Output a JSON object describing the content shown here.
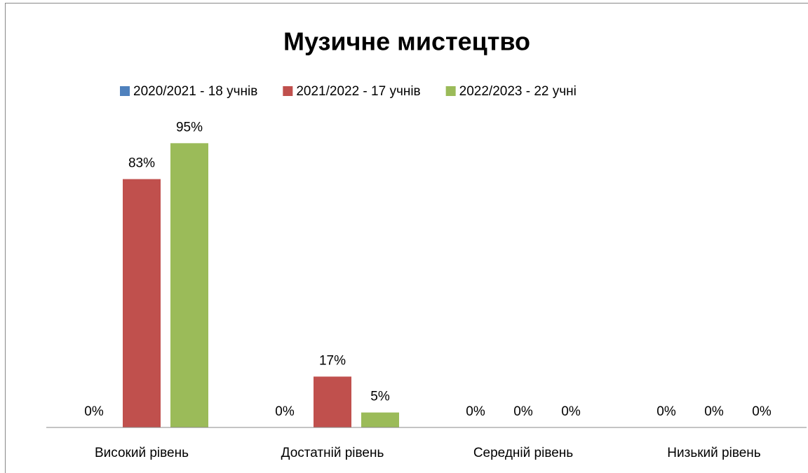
{
  "chart_data": {
    "type": "bar",
    "title": "Музичне мистецтво",
    "categories": [
      "Високий рівень",
      "Достатній рівень",
      "Середній рівень",
      "Низький рівень"
    ],
    "series": [
      {
        "name": "2020/2021 - 18 учнів",
        "color": "#4f81bd",
        "values": [
          0,
          0,
          0,
          0
        ],
        "value_labels": [
          "0%",
          "0%",
          "0%",
          "0%"
        ]
      },
      {
        "name": "2021/2022 - 17 учнів",
        "color": "#c0504d",
        "values": [
          83,
          17,
          0,
          0
        ],
        "value_labels": [
          "83%",
          "17%",
          "0%",
          "0%"
        ]
      },
      {
        "name": "2022/2023 -  22 учні",
        "color": "#9bbb59",
        "values": [
          95,
          5,
          0,
          0
        ],
        "value_labels": [
          "95%",
          "5%",
          "0%",
          "0%"
        ]
      }
    ],
    "ylim": [
      0,
      100
    ],
    "legend": "top"
  }
}
